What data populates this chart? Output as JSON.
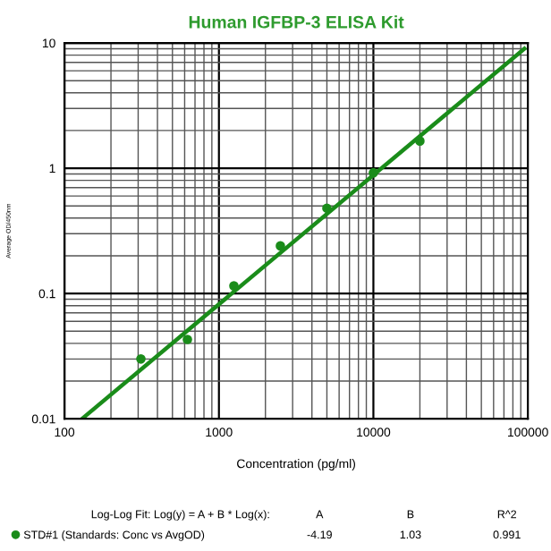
{
  "chart_data": {
    "type": "scatter",
    "title": "Human IGFBP-3 ELISA Kit",
    "xlabel": "Concentration (pg/ml)",
    "ylabel": "Average OD/450nm",
    "log": "xy",
    "xlim": [
      100,
      100000
    ],
    "ylim": [
      0.01,
      10
    ],
    "xticks": [
      100,
      1000,
      10000,
      100000
    ],
    "yticks": [
      0.01,
      0.1,
      1,
      10
    ],
    "grid": true,
    "legend": "bottom",
    "series": [
      {
        "name": "STD#1 (Standards: Conc vs AvgOD)",
        "marker": "circle",
        "color": "#1a8c1a",
        "x": [
          312.5,
          625,
          1250,
          2500,
          5000,
          10000,
          20000
        ],
        "values": [
          0.03,
          0.043,
          0.115,
          0.24,
          0.48,
          0.92,
          1.65
        ]
      },
      {
        "type": "line",
        "marker": "none",
        "color": "#1a8c1a",
        "x": [
          130,
          95000
        ],
        "values": [
          0.01,
          9
        ]
      }
    ],
    "annotations": [
      "Log-Log Fit: Log(y) = A + B * Log(x):",
      "A",
      "B",
      "R^2",
      "-4.19",
      "1.03",
      "0.991"
    ]
  }
}
